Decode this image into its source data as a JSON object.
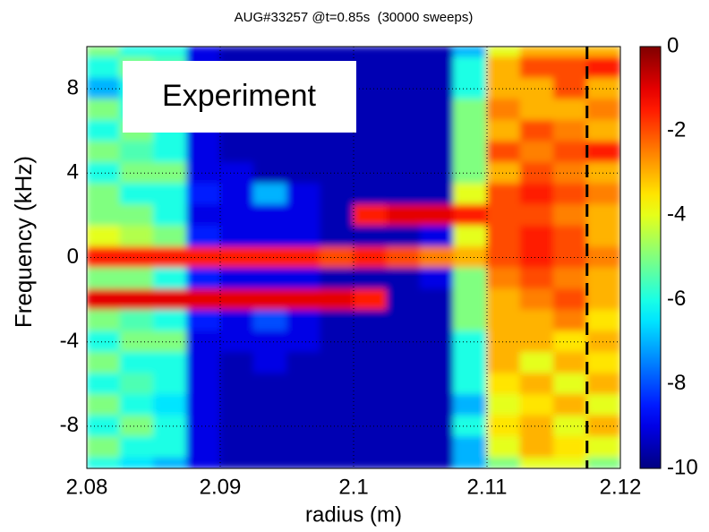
{
  "chart_data": {
    "type": "heatmap",
    "title": "AUG#33257 @t=0.85s  (30000 sweeps)",
    "x_label": "radius (m)",
    "y_label": "Frequency (kHz)",
    "annotation": "Experiment",
    "colormap": "jet",
    "grid": true,
    "xlim": [
      2.08,
      2.12
    ],
    "xticks": [
      2.08,
      2.09,
      2.1,
      2.11,
      2.12
    ],
    "ylim": [
      -10,
      10
    ],
    "yticks": [
      -8,
      -4,
      0,
      4,
      8
    ],
    "clim": [
      -10,
      0
    ],
    "cticks": [
      0,
      -2,
      -4,
      -6,
      -8,
      -10
    ],
    "marker_line": {
      "x": 2.1175,
      "color": "#000000",
      "style": "dashed"
    },
    "x": [
      2.08125,
      2.08375,
      2.08625,
      2.08875,
      2.09125,
      2.09375,
      2.09625,
      2.09875,
      2.10125,
      2.10375,
      2.10625,
      2.10875,
      2.11125,
      2.11375,
      2.11625,
      2.11875
    ],
    "y": [
      10,
      9,
      8,
      7,
      6,
      5,
      4,
      3,
      2,
      1,
      0,
      -1,
      -2,
      -3,
      -4,
      -5,
      -6,
      -7,
      -8,
      -9,
      -10
    ],
    "z": [
      [
        -5,
        -6,
        -6,
        -9,
        -9.5,
        -9.5,
        -9.5,
        -9.5,
        -9.5,
        -9.5,
        -9.5,
        -7,
        -4,
        -3,
        -3,
        -3
      ],
      [
        -6,
        -5,
        -5.5,
        -9,
        -9.5,
        -9.5,
        -9.5,
        -9.5,
        -9.5,
        -9.5,
        -9.5,
        -6,
        -3,
        -2,
        -2,
        -1.5
      ],
      [
        -7,
        -6,
        -6,
        -9,
        -9.5,
        -9.5,
        -9.5,
        -9.5,
        -9.5,
        -9.5,
        -9.5,
        -6,
        -3,
        -3,
        -2,
        -3
      ],
      [
        -5,
        -6,
        -7,
        -9,
        -9.5,
        -9.5,
        -9.5,
        -9.5,
        -9.5,
        -9.5,
        -9.5,
        -5,
        -2.5,
        -3,
        -3,
        -2.5
      ],
      [
        -6,
        -5,
        -6,
        -9,
        -9.5,
        -9.5,
        -9.5,
        -9.5,
        -9.5,
        -9.5,
        -9.5,
        -5,
        -3,
        -2,
        -2.5,
        -3
      ],
      [
        -5,
        -5.5,
        -6,
        -9,
        -9.5,
        -9.5,
        -9.5,
        -9.5,
        -9.5,
        -9.5,
        -9.5,
        -5,
        -2,
        -2.5,
        -2,
        -1.5
      ],
      [
        -6,
        -5,
        -5,
        -9,
        -9,
        -9.5,
        -9.5,
        -9.5,
        -9.5,
        -9.5,
        -9.5,
        -5,
        -3,
        -2,
        -2.5,
        -3
      ],
      [
        -5,
        -6,
        -6,
        -8.5,
        -9,
        -7,
        -9,
        -9.5,
        -9.5,
        -9.5,
        -9.5,
        -4,
        -2,
        -1.5,
        -2,
        -2.5
      ],
      [
        -5,
        -5,
        -6,
        -9,
        -9,
        -9,
        -9,
        -9.5,
        -1.5,
        -1,
        -1,
        -1.5,
        -2,
        -2,
        -2.5,
        -3
      ],
      [
        -4,
        -4.5,
        -5,
        -8.5,
        -9,
        -9,
        -9,
        -9.5,
        -9.5,
        -9.5,
        -9,
        -4,
        -2,
        -1.5,
        -2,
        -3
      ],
      [
        -1.5,
        -1.5,
        -1.5,
        -1.5,
        -1.5,
        -1.5,
        -1.5,
        -2,
        -1.5,
        -2,
        -2.5,
        -3,
        -2,
        -1.5,
        -2,
        -2.5
      ],
      [
        -5,
        -5,
        -6,
        -8.5,
        -9,
        -9,
        -9,
        -9.5,
        -9.5,
        -9.5,
        -9,
        -5,
        -2.5,
        -2,
        -2.5,
        -3
      ],
      [
        -1,
        -1,
        -1,
        -1,
        -1,
        -1,
        -1,
        -1,
        -1.5,
        -9.5,
        -9.5,
        -5,
        -3,
        -2.5,
        -2,
        -3
      ],
      [
        -5,
        -5.5,
        -6,
        -8.5,
        -9,
        -8,
        -9,
        -9.5,
        -9.5,
        -9.5,
        -9.5,
        -5,
        -3,
        -3,
        -2.5,
        -3.5
      ],
      [
        -6,
        -5,
        -5,
        -9,
        -9,
        -9,
        -9,
        -9.5,
        -9.5,
        -9.5,
        -9.5,
        -6,
        -3,
        -3,
        -3.5,
        -3
      ],
      [
        -5,
        -6,
        -6,
        -9,
        -9.5,
        -9,
        -9.5,
        -9.5,
        -9.5,
        -9.5,
        -9.5,
        -6,
        -3,
        -4,
        -3,
        -3.5
      ],
      [
        -6,
        -5.5,
        -6,
        -9,
        -9.5,
        -9.5,
        -9.5,
        -9.5,
        -9.5,
        -9.5,
        -9.5,
        -6,
        -3.5,
        -3,
        -4,
        -3
      ],
      [
        -5,
        -6,
        -6.5,
        -9,
        -9.5,
        -9.5,
        -9.5,
        -9.5,
        -9.5,
        -9.5,
        -9.5,
        -7,
        -4,
        -3.5,
        -3,
        -4
      ],
      [
        -6,
        -5,
        -6,
        -9,
        -9.5,
        -9.5,
        -9.5,
        -9.5,
        -9.5,
        -9.5,
        -9.5,
        -6,
        -3.5,
        -3,
        -4,
        -3
      ],
      [
        -5,
        -6,
        -6,
        -9,
        -9.5,
        -9.5,
        -9.5,
        -9.5,
        -9.5,
        -9.5,
        -9.5,
        -7,
        -4,
        -3,
        -3.5,
        -4
      ],
      [
        -6,
        -6.5,
        -7,
        -9,
        -9.5,
        -9.5,
        -9.5,
        -9.5,
        -9.5,
        -9.5,
        -9.5,
        -7,
        -5,
        -4,
        -4,
        -5
      ]
    ]
  }
}
